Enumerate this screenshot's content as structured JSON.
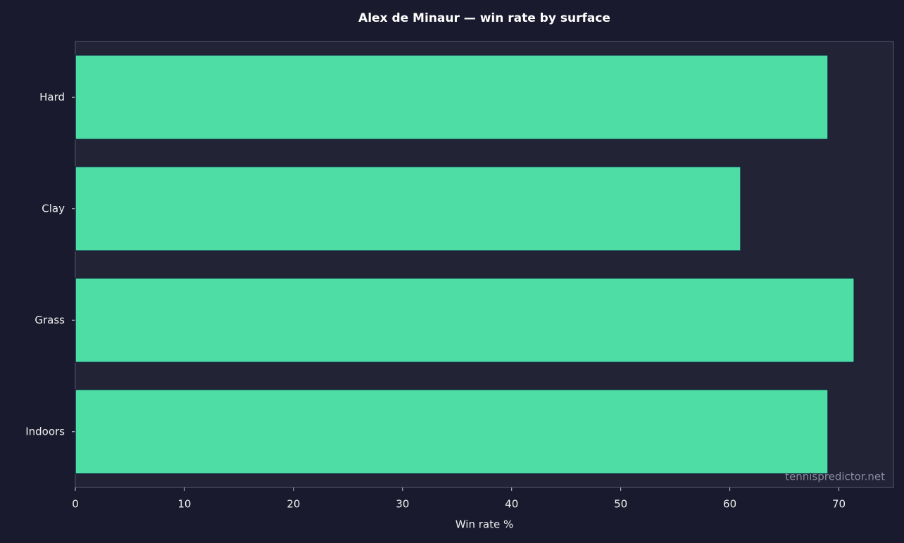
{
  "chart_data": {
    "type": "hbar",
    "title": "Alex de Minaur — win rate by surface",
    "categories": [
      "Hard",
      "Clay",
      "Grass",
      "Indoors"
    ],
    "values": [
      69.0,
      61.0,
      71.4,
      69.0
    ],
    "color": "#4ddda5",
    "xlabel": "Win rate %",
    "xlim": [
      0,
      75
    ],
    "xticks": [
      0,
      10,
      20,
      30,
      40,
      50,
      60,
      70
    ],
    "grid": false,
    "watermark": "tennispredictor.net"
  }
}
